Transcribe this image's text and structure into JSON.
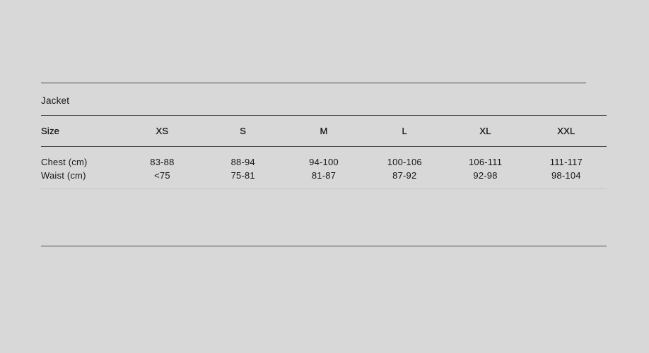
{
  "section": {
    "title": "Jacket"
  },
  "table": {
    "columns": [
      "Size",
      "XS",
      "S",
      "M",
      "L",
      "XL",
      "XXL"
    ],
    "rows": [
      {
        "label": "Chest (cm)",
        "values": [
          "83-88",
          "88-94",
          "94-100",
          "100-106",
          "106-111",
          "111-117"
        ]
      },
      {
        "label": "Waist (cm)",
        "values": [
          "<75",
          "75-81",
          "81-87",
          "87-92",
          "92-98",
          "98-104"
        ]
      }
    ]
  },
  "colors": {
    "background": "#d8d8d8",
    "rule_dark": "#4c4d4f",
    "rule_light": "#c3c3c5",
    "text": "#161616"
  }
}
